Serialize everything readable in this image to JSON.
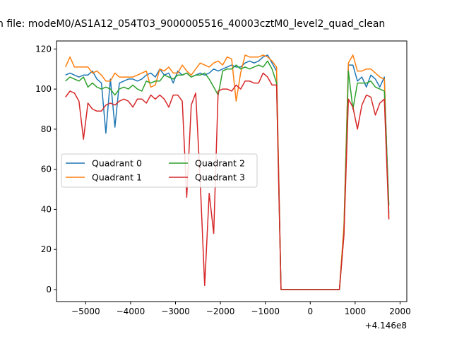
{
  "chart_data": {
    "type": "line",
    "title": "n file: modeM0/AS1A12_054T03_9000005516_40003cztM0_level2_quad_clean",
    "xlabel": "",
    "ylabel": "",
    "x_offset_label": "+4.146e8",
    "xlim": [
      -5650,
      2150
    ],
    "ylim": [
      -6,
      124
    ],
    "x_ticks": [
      -5000,
      -4000,
      -3000,
      -2000,
      -1000,
      0,
      1000,
      2000
    ],
    "x_tick_labels": [
      "−5000",
      "−4000",
      "−3000",
      "−2000",
      "−1000",
      "0",
      "1000",
      "2000"
    ],
    "y_ticks": [
      0,
      20,
      40,
      60,
      80,
      100,
      120
    ],
    "y_tick_labels": [
      "0",
      "20",
      "40",
      "60",
      "80",
      "100",
      "120"
    ],
    "grid": false,
    "legend_placement": "center-left",
    "legend_columns": 2,
    "series": [
      {
        "name": "Quadrant 0",
        "color": "#1f77b4",
        "x": [
          -5450,
          -5350,
          -5250,
          -5150,
          -5050,
          -4950,
          -4850,
          -4750,
          -4650,
          -4550,
          -4450,
          -4350,
          -4250,
          -4150,
          -4050,
          -3950,
          -3850,
          -3750,
          -3650,
          -3550,
          -3450,
          -3350,
          -3250,
          -3150,
          -3050,
          -2950,
          -2850,
          -2750,
          -2650,
          -2550,
          -2450,
          -2350,
          -2250,
          -2150,
          -2050,
          -1950,
          -1850,
          -1750,
          -1650,
          -1550,
          -1450,
          -1350,
          -1250,
          -1150,
          -1050,
          -950,
          -850,
          -750,
          -650,
          -550,
          -450,
          -350,
          -150,
          50,
          250,
          450,
          650,
          750,
          850,
          950,
          1050,
          1150,
          1250,
          1350,
          1450,
          1550,
          1650,
          1750
        ],
        "y": [
          107,
          108,
          107,
          106,
          107,
          107,
          109,
          105,
          103,
          78,
          105,
          81,
          103,
          104,
          105,
          105,
          104,
          105,
          107,
          108,
          106,
          110,
          107,
          108,
          103,
          109,
          107,
          108,
          106,
          107,
          108,
          107,
          108,
          110,
          109,
          110,
          111,
          112,
          111,
          111,
          113,
          114,
          113,
          114,
          116,
          117,
          113,
          109,
          0,
          0,
          0,
          0,
          0,
          0,
          0,
          0,
          0,
          30,
          112,
          112,
          104,
          106,
          101,
          107,
          105,
          101,
          106,
          38
        ]
      },
      {
        "name": "Quadrant 1",
        "color": "#ff7f0e",
        "x": [
          -5450,
          -5350,
          -5250,
          -5150,
          -5050,
          -4950,
          -4850,
          -4750,
          -4650,
          -4550,
          -4450,
          -4350,
          -4250,
          -4150,
          -4050,
          -3950,
          -3850,
          -3750,
          -3650,
          -3550,
          -3450,
          -3350,
          -3250,
          -3150,
          -3050,
          -2950,
          -2850,
          -2750,
          -2650,
          -2550,
          -2450,
          -2350,
          -2250,
          -2150,
          -2050,
          -1950,
          -1850,
          -1750,
          -1650,
          -1550,
          -1450,
          -1350,
          -1250,
          -1150,
          -1050,
          -950,
          -850,
          -750,
          -650,
          -550,
          -450,
          -350,
          -150,
          50,
          250,
          450,
          650,
          750,
          850,
          950,
          1050,
          1150,
          1250,
          1350,
          1450,
          1550,
          1650,
          1750
        ],
        "y": [
          111,
          116,
          111,
          111,
          111,
          111,
          108,
          109,
          107,
          104,
          104,
          108,
          106,
          106,
          106,
          106,
          107,
          108,
          109,
          101,
          102,
          110,
          109,
          111,
          108,
          108,
          112,
          109,
          107,
          110,
          113,
          112,
          111,
          113,
          114,
          112,
          116,
          115,
          94,
          108,
          117,
          116,
          116,
          116,
          117,
          116,
          114,
          111,
          0,
          0,
          0,
          0,
          0,
          0,
          0,
          0,
          0,
          32,
          113,
          117,
          109,
          109,
          110,
          110,
          108,
          106,
          105,
          36
        ]
      },
      {
        "name": "Quadrant 2",
        "color": "#2ca02c",
        "x": [
          -5450,
          -5350,
          -5250,
          -5150,
          -5050,
          -4950,
          -4850,
          -4750,
          -4650,
          -4550,
          -4450,
          -4350,
          -4250,
          -4150,
          -4050,
          -3950,
          -3850,
          -3750,
          -3650,
          -3550,
          -3450,
          -3350,
          -3250,
          -3150,
          -3050,
          -2950,
          -2850,
          -2750,
          -2650,
          -2550,
          -2450,
          -2350,
          -2250,
          -2150,
          -2050,
          -1950,
          -1850,
          -1750,
          -1650,
          -1550,
          -1450,
          -1350,
          -1250,
          -1150,
          -1050,
          -950,
          -850,
          -750,
          -650,
          -550,
          -450,
          -350,
          -150,
          50,
          250,
          450,
          650,
          750,
          850,
          950,
          1050,
          1150,
          1250,
          1350,
          1450,
          1550,
          1650,
          1750
        ],
        "y": [
          104,
          106,
          105,
          104,
          106,
          101,
          103,
          101,
          100,
          101,
          100,
          97,
          100,
          101,
          100,
          102,
          100,
          99,
          104,
          103,
          104,
          104,
          107,
          106,
          105,
          107,
          107,
          108,
          106,
          107,
          107,
          108,
          105,
          101,
          97,
          109,
          110,
          110,
          112,
          110,
          111,
          110,
          111,
          112,
          111,
          114,
          110,
          103,
          0,
          0,
          0,
          0,
          0,
          0,
          0,
          0,
          0,
          28,
          109,
          90,
          103,
          103,
          103,
          104,
          101,
          100,
          99,
          42
        ]
      },
      {
        "name": "Quadrant 3",
        "color": "#d62728",
        "x": [
          -5450,
          -5350,
          -5250,
          -5150,
          -5050,
          -4950,
          -4850,
          -4750,
          -4650,
          -4550,
          -4450,
          -4350,
          -4250,
          -4150,
          -4050,
          -3950,
          -3850,
          -3750,
          -3650,
          -3550,
          -3450,
          -3350,
          -3250,
          -3150,
          -3050,
          -2950,
          -2850,
          -2750,
          -2650,
          -2550,
          -2450,
          -2350,
          -2250,
          -2150,
          -2050,
          -1950,
          -1850,
          -1750,
          -1650,
          -1550,
          -1450,
          -1350,
          -1250,
          -1150,
          -1050,
          -950,
          -850,
          -750,
          -650,
          -550,
          -450,
          -350,
          -150,
          50,
          250,
          450,
          650,
          750,
          850,
          950,
          1050,
          1150,
          1250,
          1350,
          1450,
          1550,
          1650,
          1750
        ],
        "y": [
          96,
          99,
          98,
          94,
          75,
          93,
          90,
          89,
          89,
          92,
          93,
          92,
          94,
          95,
          94,
          91,
          95,
          95,
          93,
          97,
          95,
          97,
          95,
          91,
          97,
          97,
          94,
          46,
          92,
          98,
          54,
          2,
          48,
          28,
          99,
          100,
          100,
          99,
          102,
          100,
          104,
          104,
          103,
          103,
          108,
          106,
          102,
          102,
          0,
          0,
          0,
          0,
          0,
          0,
          0,
          0,
          0,
          27,
          95,
          91,
          80,
          92,
          97,
          96,
          87,
          93,
          95,
          35
        ]
      }
    ]
  }
}
